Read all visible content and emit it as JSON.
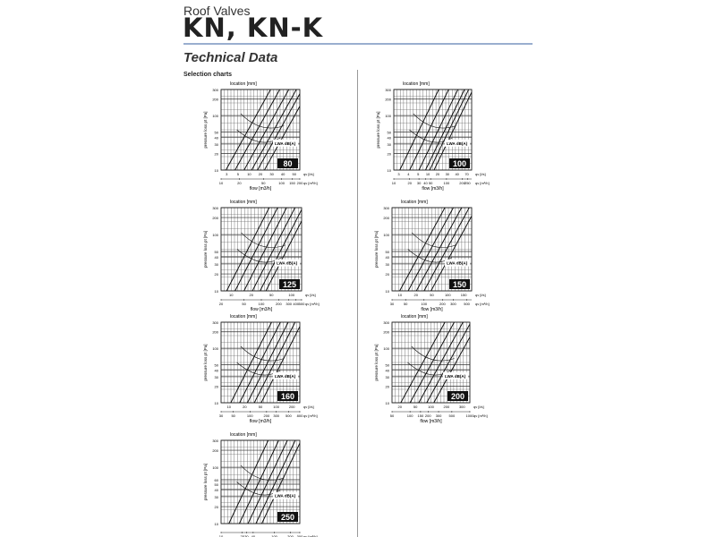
{
  "header": {
    "subtitle": "Roof Valves",
    "title": "KN, KN-K",
    "section": "Technical Data",
    "charts_label": "Selection charts"
  },
  "common": {
    "top_label": "location [mm]",
    "y_label": "pressure loss pt [Pa]",
    "x_label": "flow [m3/h]",
    "sound_label": "LWA dB(A)",
    "unit_ls": "qv [l/s]",
    "unit_m3h": "qv [m³/h]"
  },
  "chart_data": [
    {
      "type": "line",
      "size": "80",
      "ylim": [
        10,
        300
      ],
      "xlim": [
        10,
        200
      ],
      "y_ticks": [
        10,
        20,
        30,
        40,
        50,
        100,
        200,
        300
      ],
      "x_ticks": [
        10,
        20,
        50,
        100,
        150,
        200
      ],
      "x_ticks_ls": [
        3,
        5,
        10,
        20,
        30,
        40,
        50
      ],
      "lines": [
        12,
        17,
        24,
        32,
        40,
        52
      ],
      "grid": true
    },
    {
      "type": "line",
      "size": "100",
      "ylim": [
        10,
        300
      ],
      "xlim": [
        10,
        300
      ],
      "y_ticks": [
        10,
        20,
        30,
        40,
        50,
        100,
        200,
        300
      ],
      "x_ticks": [
        10,
        20,
        30,
        40,
        50,
        100,
        200,
        250
      ],
      "x_ticks_ls": [
        3,
        4,
        5,
        10,
        20,
        30,
        40,
        70
      ],
      "lines": [
        13,
        20,
        30,
        40,
        48,
        58
      ],
      "grid": true
    },
    {
      "type": "line",
      "size": "125",
      "ylim": [
        10,
        300
      ],
      "xlim": [
        20,
        500
      ],
      "y_ticks": [
        10,
        20,
        30,
        40,
        50,
        100,
        200,
        300
      ],
      "x_ticks": [
        20,
        50,
        100,
        200,
        300,
        400,
        500
      ],
      "x_ticks_ls": [
        10,
        20,
        50,
        100
      ],
      "lines": [
        25,
        35,
        50,
        70,
        95,
        120
      ],
      "grid": true
    },
    {
      "type": "line",
      "size": "150",
      "ylim": [
        10,
        300
      ],
      "xlim": [
        30,
        600
      ],
      "y_ticks": [
        10,
        20,
        30,
        40,
        50,
        100,
        200,
        300
      ],
      "x_ticks": [
        30,
        50,
        100,
        200,
        300,
        500
      ],
      "x_ticks_ls": [
        10,
        20,
        50,
        100,
        150
      ],
      "lines": [
        40,
        55,
        75,
        100,
        130
      ],
      "grid": true
    },
    {
      "type": "line",
      "size": "160",
      "ylim": [
        10,
        300
      ],
      "xlim": [
        30,
        800
      ],
      "y_ticks": [
        10,
        20,
        30,
        40,
        50,
        100,
        200,
        300
      ],
      "x_ticks": [
        30,
        50,
        100,
        200,
        300,
        500,
        800
      ],
      "x_ticks_ls": [
        10,
        20,
        50,
        100,
        200
      ],
      "lines": [
        45,
        65,
        90,
        120,
        160
      ],
      "grid": true
    },
    {
      "type": "line",
      "size": "200",
      "ylim": [
        10,
        300
      ],
      "xlim": [
        50,
        1000
      ],
      "y_ticks": [
        10,
        20,
        30,
        40,
        50,
        100,
        200,
        300
      ],
      "x_ticks": [
        50,
        100,
        150,
        200,
        300,
        500,
        1000
      ],
      "x_ticks_ls": [
        20,
        50,
        100,
        200,
        300
      ],
      "lines": [
        70,
        100,
        140,
        190,
        250
      ],
      "grid": true
    },
    {
      "type": "line",
      "size": "250",
      "ylim": [
        10,
        300
      ],
      "xlim": [
        10,
        300
      ],
      "y_ticks": [
        10,
        20,
        30,
        40,
        50,
        60,
        100,
        200,
        300
      ],
      "x_ticks": [
        10,
        25,
        30,
        40,
        100,
        200,
        300
      ],
      "x_ticks_ls": [],
      "lines": [
        14,
        22,
        32,
        45,
        58
      ],
      "grid": true
    }
  ]
}
